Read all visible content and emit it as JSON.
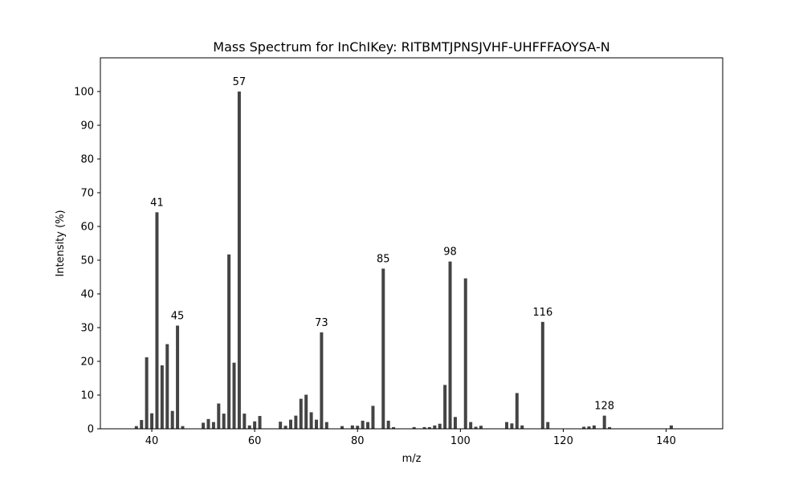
{
  "chart_data": {
    "type": "bar",
    "title": "Mass Spectrum for InChIKey: RITBMTJPNSJVHF-UHFFFAOYSA-N",
    "xlabel": "m/z",
    "ylabel": "Intensity (%)",
    "xlim": [
      30,
      151
    ],
    "ylim": [
      0,
      110
    ],
    "xticks": [
      40,
      60,
      80,
      100,
      120,
      140
    ],
    "yticks": [
      0,
      10,
      20,
      30,
      40,
      50,
      60,
      70,
      80,
      90,
      100
    ],
    "grid": false,
    "bar_color": "#444444",
    "x": [
      37,
      38,
      39,
      40,
      41,
      42,
      43,
      44,
      45,
      46,
      50,
      51,
      52,
      53,
      54,
      55,
      56,
      57,
      58,
      59,
      60,
      61,
      65,
      66,
      67,
      68,
      69,
      70,
      71,
      72,
      73,
      74,
      77,
      79,
      80,
      81,
      82,
      83,
      85,
      86,
      87,
      91,
      93,
      94,
      95,
      96,
      97,
      98,
      99,
      101,
      102,
      103,
      104,
      109,
      110,
      111,
      112,
      116,
      117,
      124,
      125,
      126,
      128,
      129,
      141
    ],
    "values": [
      0.8,
      2.6,
      21.2,
      4.6,
      64.2,
      18.8,
      25.1,
      5.3,
      30.6,
      0.8,
      1.8,
      2.9,
      2.0,
      7.5,
      4.5,
      51.7,
      19.6,
      100,
      4.5,
      1.0,
      2.2,
      3.8,
      2.1,
      0.9,
      2.7,
      3.9,
      8.9,
      10.1,
      4.9,
      2.7,
      28.6,
      2.0,
      0.8,
      1.0,
      0.9,
      2.4,
      2.0,
      6.8,
      47.5,
      2.4,
      0.5,
      0.5,
      0.5,
      0.5,
      1.0,
      1.5,
      13.0,
      49.6,
      3.5,
      44.6,
      2.0,
      0.6,
      0.9,
      2.0,
      1.6,
      10.6,
      1.0,
      31.7,
      2.0,
      0.6,
      0.7,
      1.0,
      3.9,
      0.5,
      1.0
    ],
    "annotations": [
      {
        "x": 41,
        "y": 64.2,
        "label": "41"
      },
      {
        "x": 45,
        "y": 30.6,
        "label": "45"
      },
      {
        "x": 57,
        "y": 100,
        "label": "57"
      },
      {
        "x": 73,
        "y": 28.6,
        "label": "73"
      },
      {
        "x": 85,
        "y": 47.5,
        "label": "85"
      },
      {
        "x": 98,
        "y": 49.6,
        "label": "98"
      },
      {
        "x": 116,
        "y": 31.7,
        "label": "116"
      },
      {
        "x": 128,
        "y": 3.9,
        "label": "128"
      }
    ]
  }
}
